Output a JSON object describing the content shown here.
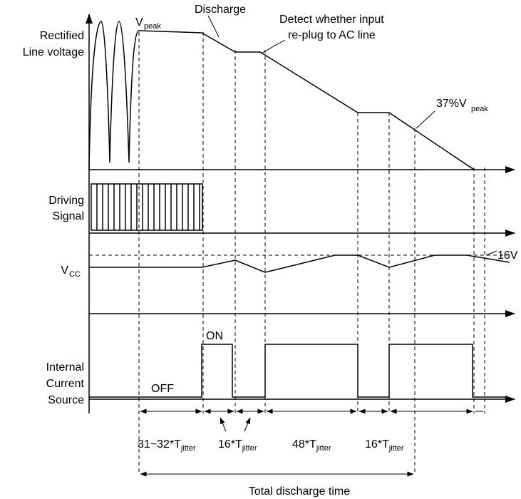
{
  "labels": {
    "rectified_line_1": "Rectified",
    "rectified_line_2": "Line voltage",
    "driving_1": "Driving",
    "driving_2": "Signal",
    "vcc_main": "V",
    "vcc_sub": "CC",
    "internal_1": "Internal",
    "internal_2": "Current",
    "internal_3": "Source"
  },
  "annotations": {
    "vpeak_main": "V",
    "vpeak_sub": "peak",
    "discharge": "Discharge",
    "detect_1": "Detect whether input",
    "detect_2": "re-plug to AC line",
    "pct_main": "37%V",
    "pct_sub": "peak",
    "vcc_level": "16V",
    "on": "ON",
    "off": "OFF",
    "total": "Total discharge time"
  },
  "intervals": [
    {
      "main": "31~32*T",
      "sub": "jitter"
    },
    {
      "main": "16*T",
      "sub": "jitter"
    },
    {
      "main": "48*T",
      "sub": "jitter"
    },
    {
      "main": "16*T",
      "sub": "jitter"
    }
  ],
  "colors": {
    "stroke": "#000000",
    "background": "#ffffff"
  }
}
